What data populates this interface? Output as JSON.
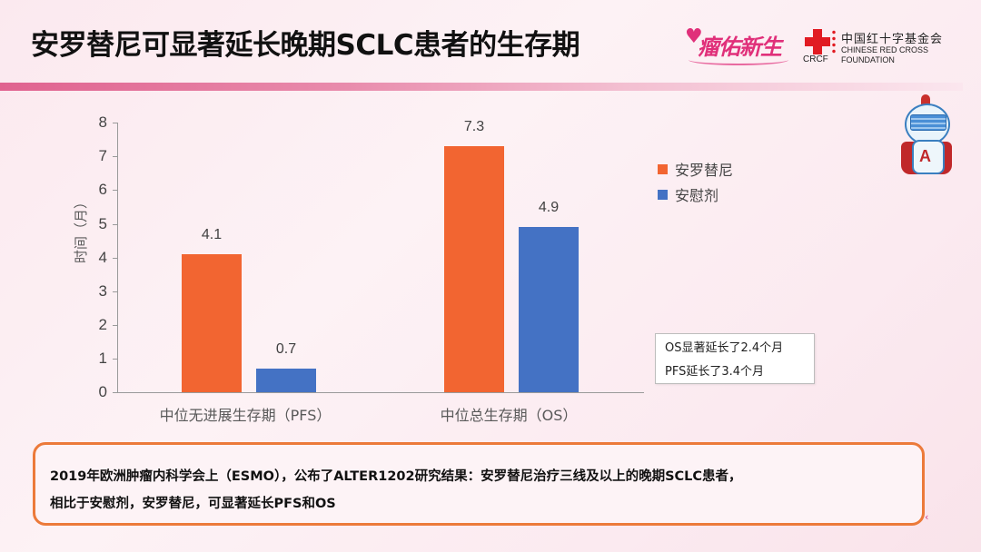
{
  "header": {
    "title": "安罗替尼可显著延长晚期SCLC患者的生存期",
    "logos": {
      "fuyou": "瘤佑新生",
      "crcf_abbr": "CRCF",
      "crcf_cn": "中国红十字基金会",
      "crcf_en_line1": "CHINESE RED CROSS",
      "crcf_en_line2": "FOUNDATION"
    },
    "accent_bar_color": "#e0628f"
  },
  "mascot": {
    "icon": "robot-superhero-mascot-icon",
    "letter": "A"
  },
  "chart_data": {
    "type": "bar",
    "title": "",
    "xlabel": "",
    "ylabel": "时间（月）",
    "ylim": [
      0,
      8
    ],
    "yticks": [
      0,
      1,
      2,
      3,
      4,
      5,
      6,
      7,
      8
    ],
    "grid": false,
    "legend_position": "right",
    "categories": [
      "中位无进展生存期（PFS）",
      "中位总生存期（OS）"
    ],
    "series": [
      {
        "name": "安罗替尼",
        "color": "#f26531",
        "values": [
          4.1,
          7.3
        ]
      },
      {
        "name": "安慰剂",
        "color": "#4472c4",
        "values": [
          0.7,
          4.9
        ]
      }
    ],
    "annotations": [
      "OS显著延长了2.4个月",
      "PFS延长了3.4个月"
    ]
  },
  "chart_labels": {
    "ticks": [
      "0",
      "1",
      "2",
      "3",
      "4",
      "5",
      "6",
      "7",
      "8"
    ],
    "bar_values": [
      "4.1",
      "0.7",
      "7.3",
      "4.9"
    ]
  },
  "summary": {
    "line1": "2019年欧洲肿瘤内科学会上（ESMO），公布了ALTER1202研究结果：安罗替尼治疗三线及以上的晚期SCLC患者，",
    "line2": "相比于安慰剂，安罗替尼，可显著延长PFS和OS",
    "border_color": "#ec7a3a"
  }
}
